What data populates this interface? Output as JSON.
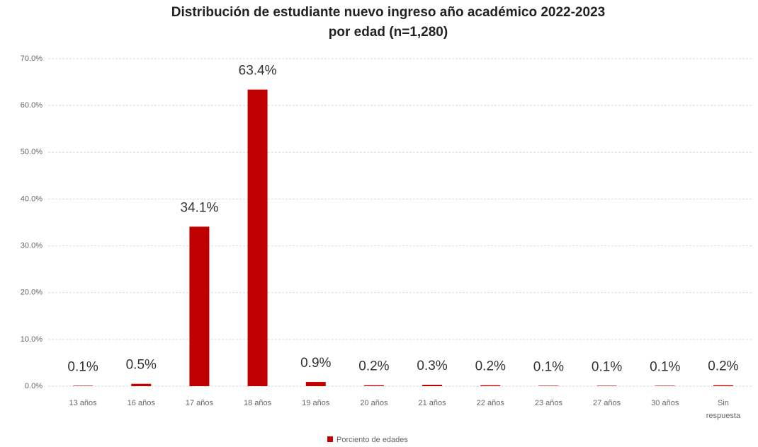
{
  "chart_data": {
    "type": "bar",
    "title": [
      "Distribución de estudiante nuevo ingreso año académico 2022-2023",
      "por edad (n=1,280)"
    ],
    "categories": [
      "13 años",
      "16 años",
      "17 años",
      "18 años",
      "19 años",
      "20 años",
      "21 años",
      "22 años",
      "23 años",
      "27 años",
      "30 años",
      "Sin respuesta"
    ],
    "series": [
      {
        "name": "Porciento de edades",
        "color": "#c00000",
        "values": [
          0.1,
          0.5,
          34.1,
          63.4,
          0.9,
          0.2,
          0.3,
          0.2,
          0.1,
          0.1,
          0.1,
          0.2
        ],
        "value_labels": [
          "0.1%",
          "0.5%",
          "34.1%",
          "63.4%",
          "0.9%",
          "0.2%",
          "0.3%",
          "0.2%",
          "0.1%",
          "0.1%",
          "0.1%",
          "0.2%"
        ]
      }
    ],
    "ylim": [
      0,
      70
    ],
    "yticks": [
      {
        "value": 0,
        "label": "0.0%"
      },
      {
        "value": 10,
        "label": "10.0%"
      },
      {
        "value": 20,
        "label": "20.0%"
      },
      {
        "value": 30,
        "label": "30.0%"
      },
      {
        "value": 40,
        "label": "40.0%"
      },
      {
        "value": 50,
        "label": "50.0%"
      },
      {
        "value": 60,
        "label": "60.0%"
      },
      {
        "value": 70,
        "label": "70.0%"
      }
    ],
    "grid": true,
    "legend": "bottom"
  }
}
